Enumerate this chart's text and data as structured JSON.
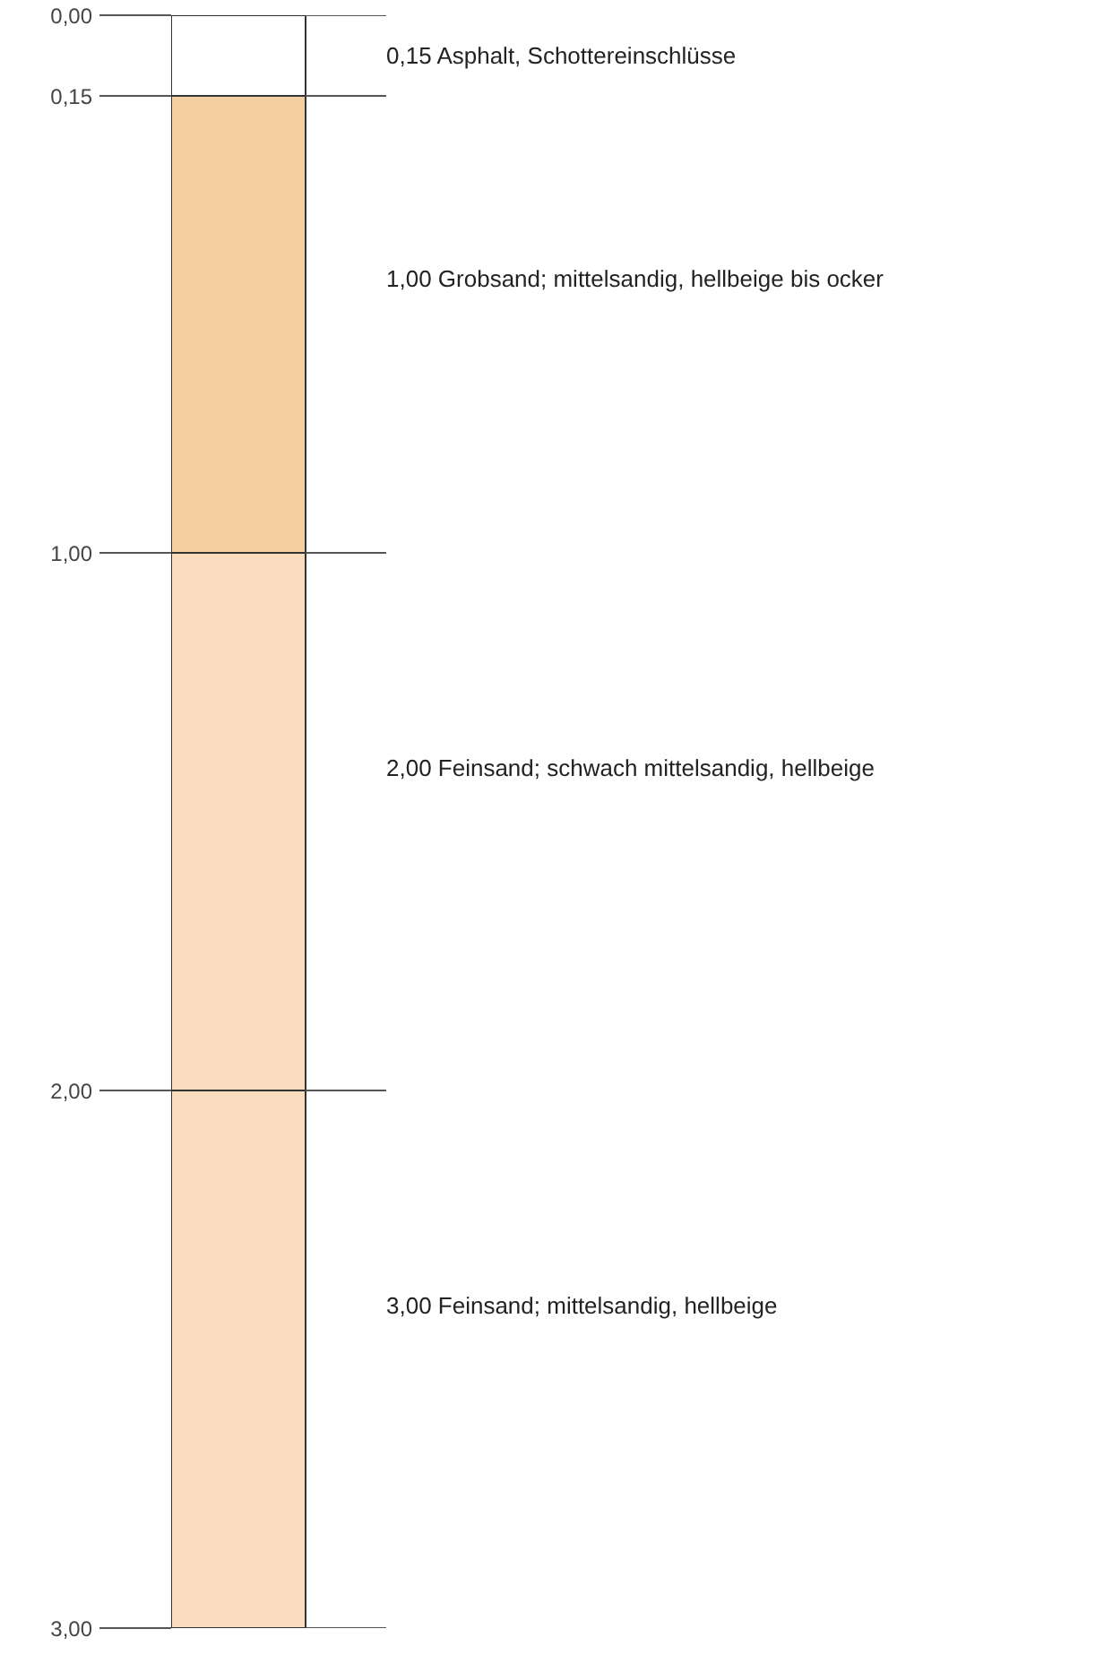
{
  "chart_data": {
    "type": "bar",
    "stacked": true,
    "categories": [
      null
    ],
    "series": [
      {
        "color": "#ffffff",
        "values": [
          0.15
        ]
      },
      {
        "color": "#f3cfa2",
        "values": [
          0.85
        ]
      },
      {
        "color": "#f8dcbd",
        "values": [
          1.0
        ]
      },
      {
        "color": "#f8dcbd",
        "values": [
          1.0
        ]
      }
    ],
    "ylim": [
      3,
      0
    ],
    "yticks": [
      {
        "value": 0,
        "label": "0,00"
      },
      {
        "value": 0.15,
        "label": "0,15"
      },
      {
        "value": 1,
        "label": "1,00"
      },
      {
        "value": 2,
        "label": "2,00"
      },
      {
        "value": 3,
        "label": "3,00"
      }
    ],
    "grid": false,
    "annotations": [
      "0,15  Asphalt, Schottereinschlüsse",
      "1,00  Grobsand; mittelsandig, hellbeige bis ocker",
      "2,00  Feinsand; schwach mittelsandig, hellbeige",
      "3,00  Feinsand; mittelsandig, hellbeige"
    ]
  }
}
